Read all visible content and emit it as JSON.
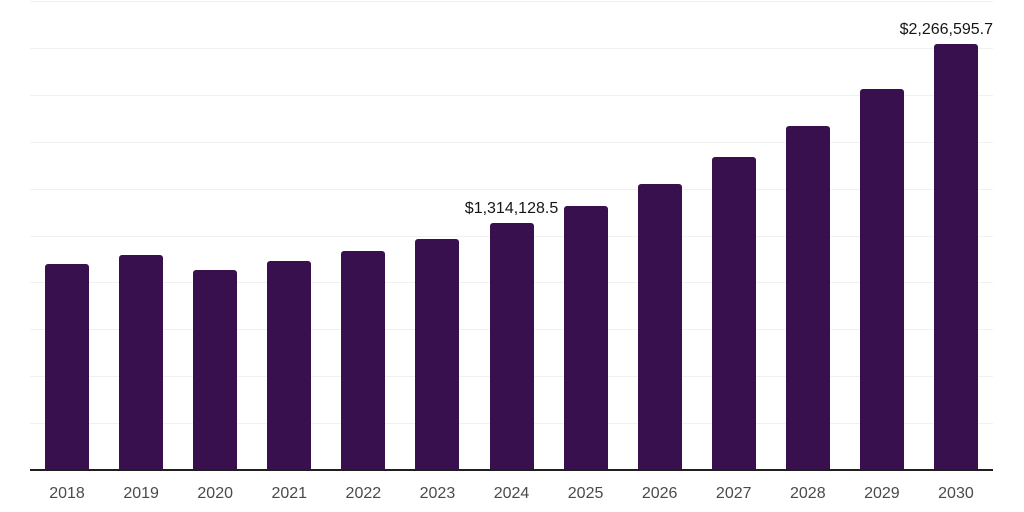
{
  "chart_data": {
    "type": "bar",
    "title": "",
    "xlabel": "",
    "ylabel": "",
    "categories": [
      "2018",
      "2019",
      "2020",
      "2021",
      "2022",
      "2023",
      "2024",
      "2025",
      "2026",
      "2027",
      "2028",
      "2029",
      "2030"
    ],
    "values": [
      1096000,
      1144000,
      1064100,
      1112000,
      1165200,
      1229000,
      1314128.5,
      1404600,
      1521700,
      1665300,
      1830300,
      2027100,
      2266595.7
    ],
    "value_labels": [
      "",
      "",
      "",
      "",
      "",
      "",
      "$1,314,128.5",
      "",
      "",
      "",
      "",
      "",
      "$2,266,595.7"
    ],
    "ylim": [
      0,
      2495000
    ],
    "gridline_count": 10,
    "grid": "horizontal-only",
    "legend": "none",
    "y_axis_tick_labels": "none",
    "colors": {
      "bar": "#37104D",
      "gridline": "#F0F0F0",
      "axis_line": "#1F1F1F",
      "tick_text": "#4A4A4A",
      "value_label_text": "#161616",
      "background": "#FFFFFF"
    }
  }
}
